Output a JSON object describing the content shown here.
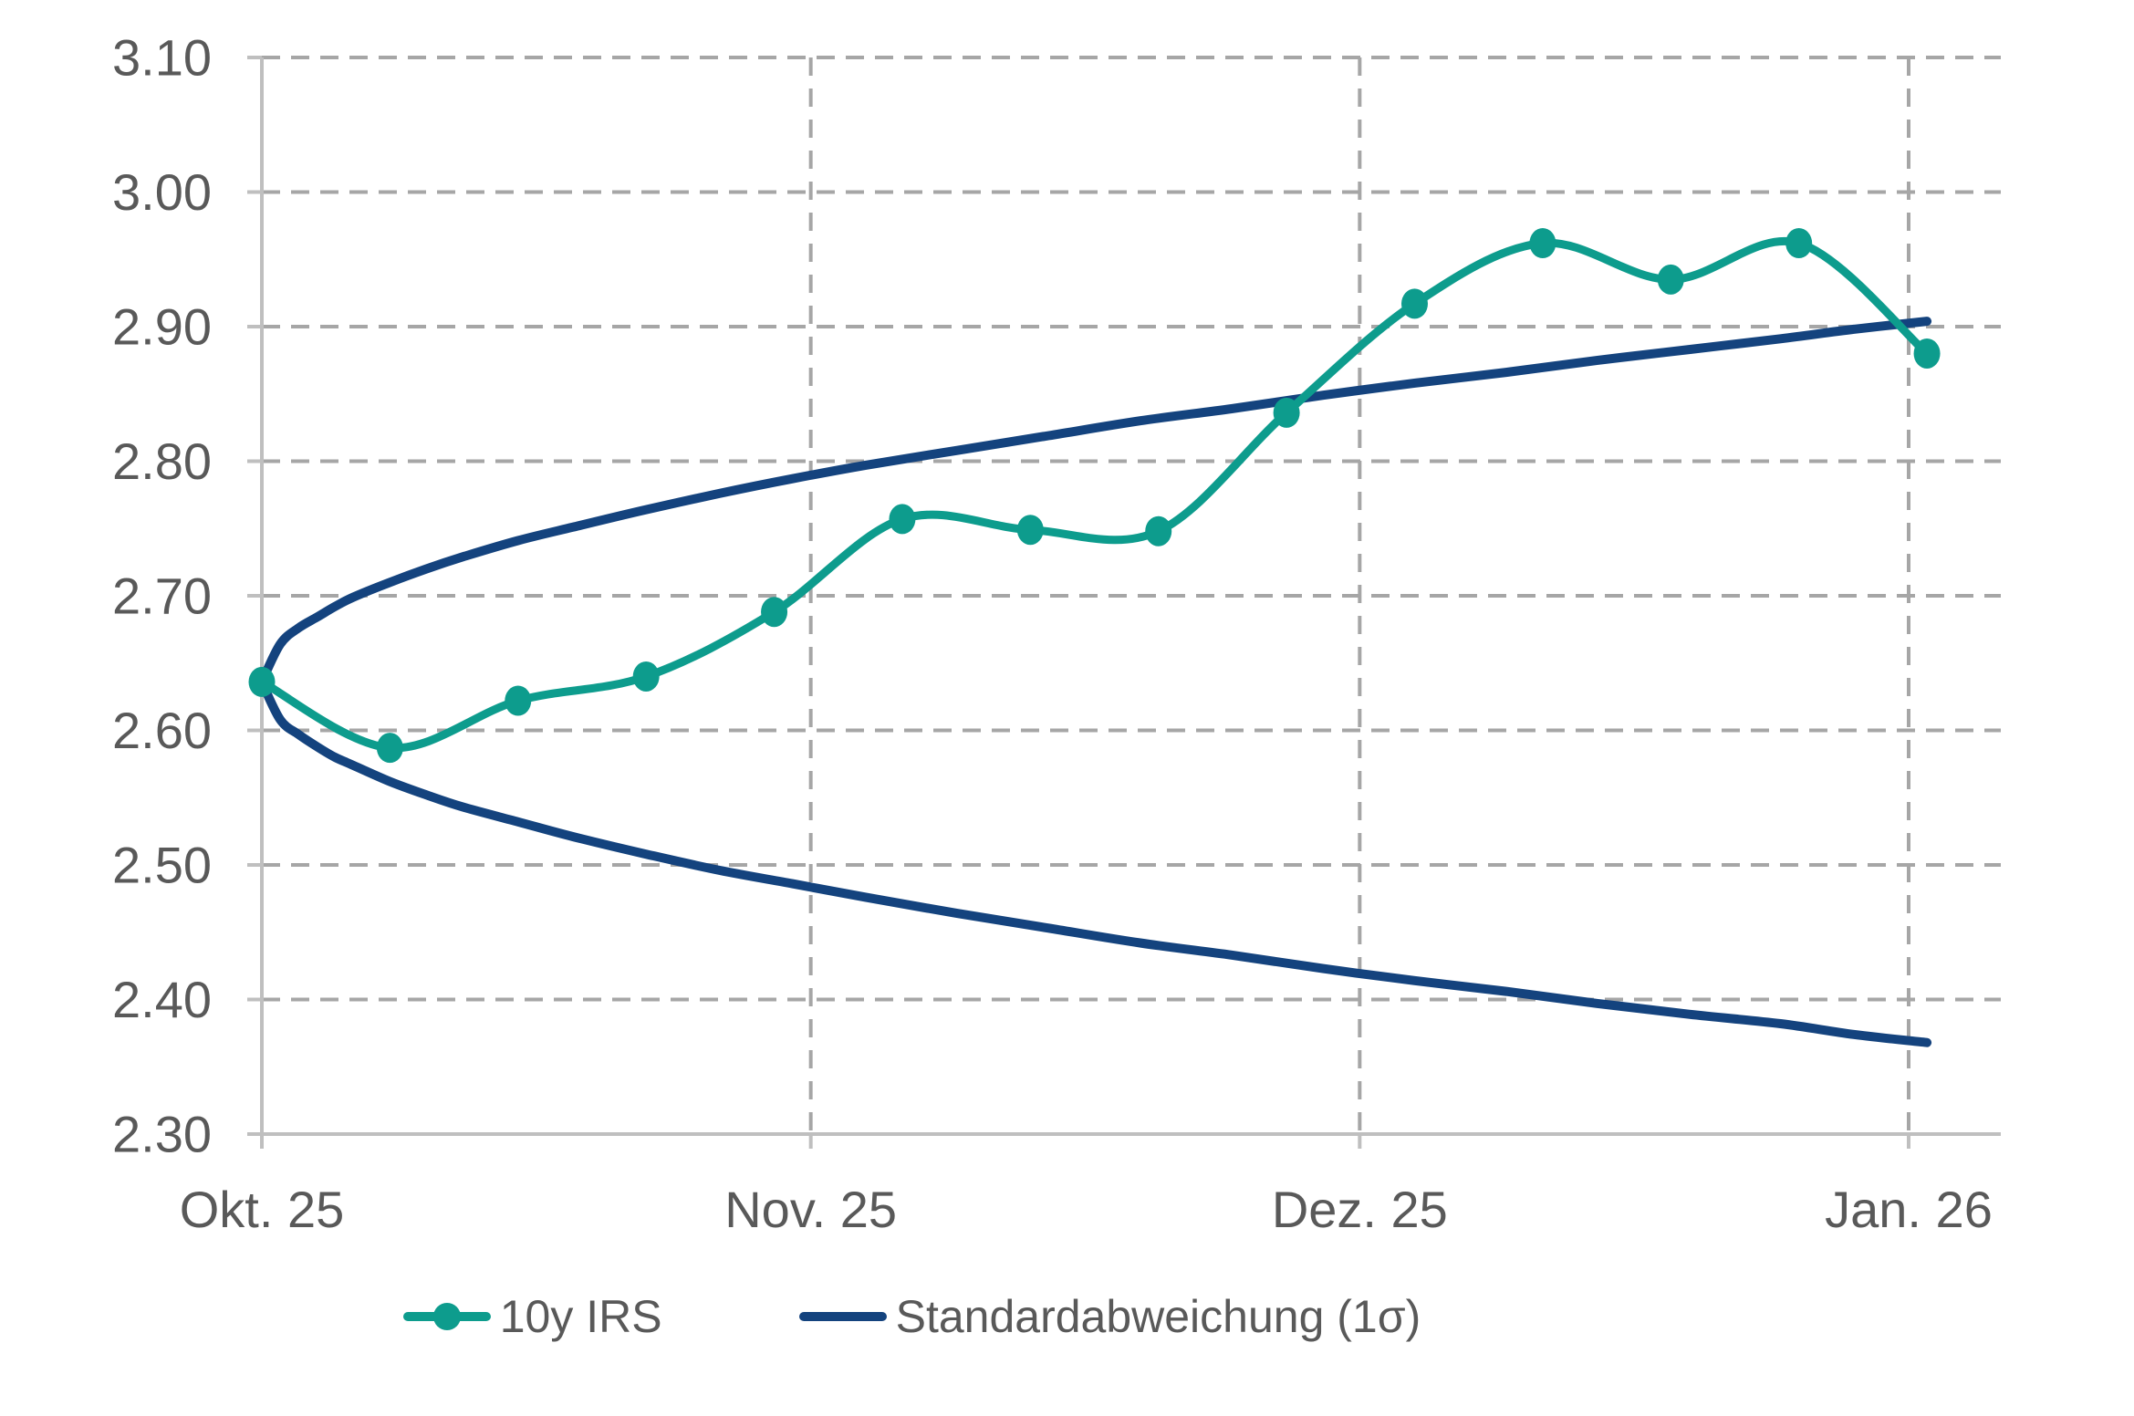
{
  "colors": {
    "irs_teal": "#0D9C8D",
    "std_navy": "#14437E",
    "label_gray": "#595959",
    "grid_gray": "#A6A6A6",
    "axis_gray": "#BFBFBF"
  },
  "chart_data": {
    "type": "line",
    "title": "",
    "x_axis": {
      "ticks": [
        {
          "label": "Okt. 25",
          "t": 0
        },
        {
          "label": "Nov. 25",
          "t": 30
        },
        {
          "label": "Dez. 25",
          "t": 60
        },
        {
          "label": "Jan. 26",
          "t": 90
        }
      ],
      "t_plot_end": 95
    },
    "y_axis": {
      "min": 2.3,
      "max": 3.1,
      "step": 0.1,
      "tick_labels": [
        "3.10",
        "3.00",
        "2.90",
        "2.80",
        "2.70",
        "2.60",
        "2.50",
        "2.40",
        "2.30"
      ]
    },
    "grid": {
      "horizontal": "dashed",
      "vertical": "dashed"
    },
    "legend_position": "bottom",
    "series": [
      {
        "name": "10y IRS",
        "color": "#0D9C8D",
        "style": "smooth-line-with-markers",
        "points": [
          {
            "date": "2025-10-01",
            "t": 0,
            "value": 2.636
          },
          {
            "date": "2025-10-08",
            "t": 7,
            "value": 2.587
          },
          {
            "date": "2025-10-15",
            "t": 14,
            "value": 2.622
          },
          {
            "date": "2025-10-22",
            "t": 21,
            "value": 2.64
          },
          {
            "date": "2025-10-29",
            "t": 28,
            "value": 2.688
          },
          {
            "date": "2025-11-05",
            "t": 35,
            "value": 2.757
          },
          {
            "date": "2025-11-12",
            "t": 42,
            "value": 2.749
          },
          {
            "date": "2025-11-19",
            "t": 49,
            "value": 2.748
          },
          {
            "date": "2025-11-26",
            "t": 56,
            "value": 2.836
          },
          {
            "date": "2025-12-03",
            "t": 63,
            "value": 2.917
          },
          {
            "date": "2025-12-10",
            "t": 70,
            "value": 2.962
          },
          {
            "date": "2025-12-17",
            "t": 77,
            "value": 2.935
          },
          {
            "date": "2025-12-24",
            "t": 84,
            "value": 2.962
          },
          {
            "date": "2025-12-31",
            "t": 91,
            "value": 2.88
          }
        ]
      },
      {
        "name": "Standardabweichung (1σ)",
        "color": "#14437E",
        "style": "smooth-line-band",
        "t": [
          0,
          1,
          2,
          3,
          4,
          5,
          7,
          9,
          11,
          14,
          17,
          21,
          25,
          29,
          33,
          38,
          43,
          48,
          53,
          58,
          63,
          68,
          73,
          78,
          83,
          87,
          91
        ],
        "upper": [
          2.636,
          2.664,
          2.676,
          2.684,
          2.692,
          2.699,
          2.71,
          2.72,
          2.729,
          2.741,
          2.751,
          2.764,
          2.776,
          2.787,
          2.797,
          2.808,
          2.819,
          2.83,
          2.839,
          2.849,
          2.858,
          2.866,
          2.875,
          2.883,
          2.891,
          2.898,
          2.904
        ],
        "lower": [
          2.636,
          2.608,
          2.597,
          2.588,
          2.58,
          2.574,
          2.562,
          2.552,
          2.543,
          2.532,
          2.521,
          2.508,
          2.496,
          2.486,
          2.476,
          2.464,
          2.453,
          2.442,
          2.433,
          2.423,
          2.414,
          2.406,
          2.397,
          2.389,
          2.382,
          2.374,
          2.368
        ]
      }
    ]
  }
}
